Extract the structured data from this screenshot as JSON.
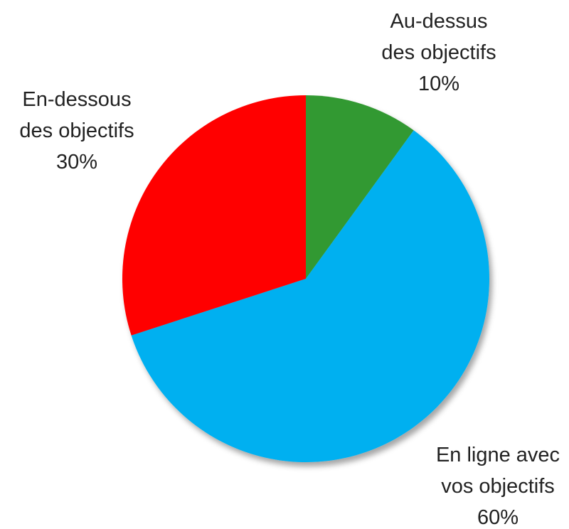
{
  "chart_data": {
    "type": "pie",
    "categories": [
      "Au-dessus des objectifs",
      "En ligne avec vos objectifs",
      "En-dessous des objectifs"
    ],
    "values": [
      10,
      60,
      30
    ],
    "value_labels": [
      "10%",
      "60%",
      "30%"
    ],
    "colors": [
      "#339933",
      "#00b0f0",
      "#ff0000"
    ]
  }
}
